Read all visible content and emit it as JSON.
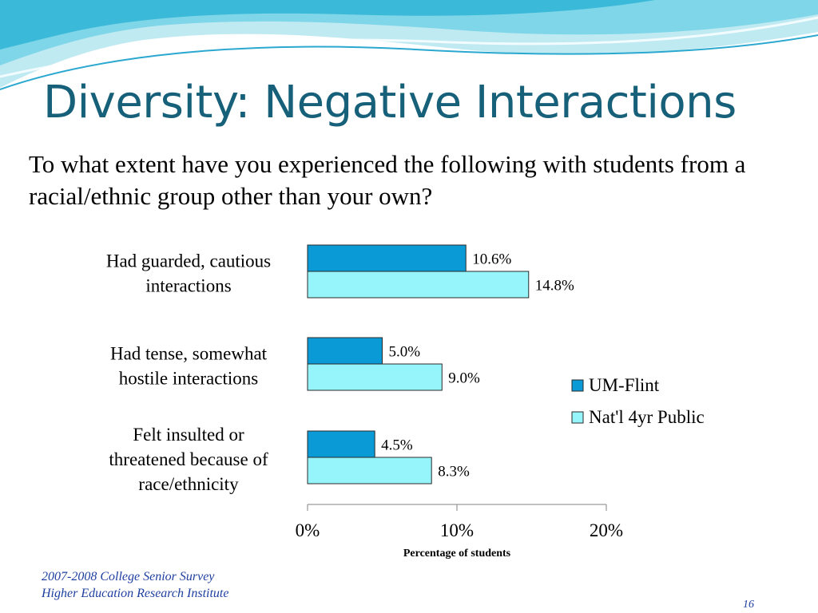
{
  "slide": {
    "title": "Diversity: Negative Interactions",
    "question": "To what extent have you experienced the following with students from a racial/ethnic group other than your own?",
    "footer_line1": "2007-2008 College Senior Survey",
    "footer_line2": "Higher Education Research Institute",
    "page_number": "16"
  },
  "chart_data": {
    "type": "bar",
    "orientation": "horizontal",
    "categories": [
      [
        "Had guarded, cautious",
        "interactions"
      ],
      [
        "Had tense, somewhat",
        "hostile interactions"
      ],
      [
        "Felt insulted or",
        "threatened because of",
        "race/ethnicity"
      ]
    ],
    "series": [
      {
        "name": "UM-Flint",
        "values": [
          10.6,
          5.0,
          4.5
        ],
        "labels": [
          "10.6%",
          "5.0%",
          "4.5%"
        ],
        "color": "#0a9ad6"
      },
      {
        "name": "Nat'l 4yr Public",
        "values": [
          14.8,
          9.0,
          8.3
        ],
        "labels": [
          "14.8%",
          "9.0%",
          "8.3%"
        ],
        "color": "#96f5fa"
      }
    ],
    "xlim": [
      0,
      20
    ],
    "xticks": [
      0,
      10,
      20
    ],
    "xtick_labels": [
      "0%",
      "10%",
      "20%"
    ],
    "xlabel": "Percentage of students",
    "legend_position": "right"
  }
}
